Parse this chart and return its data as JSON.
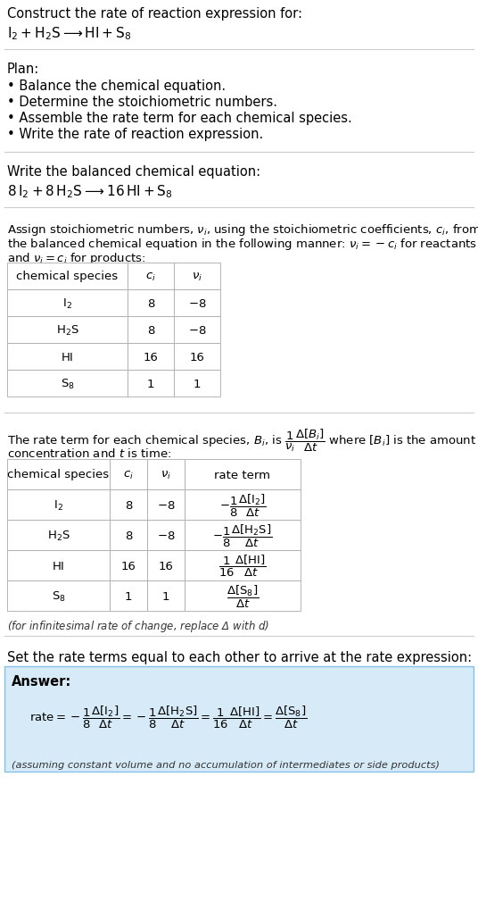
{
  "title_line1": "Construct the rate of reaction expression for:",
  "title_line2": "$\\mathrm{I_2 + H_2S \\longrightarrow HI + S_8}$",
  "plan_header": "Plan:",
  "plan_items": [
    "• Balance the chemical equation.",
    "• Determine the stoichiometric numbers.",
    "• Assemble the rate term for each chemical species.",
    "• Write the rate of reaction expression."
  ],
  "balanced_header": "Write the balanced chemical equation:",
  "balanced_eq": "$8\\,\\mathrm{I_2} + 8\\,\\mathrm{H_2S} \\longrightarrow 16\\,\\mathrm{HI} + \\mathrm{S_8}$",
  "stoich_intro1": "Assign stoichiometric numbers, $\\nu_i$, using the stoichiometric coefficients, $c_i$, from",
  "stoich_intro2": "the balanced chemical equation in the following manner: $\\nu_i = -c_i$ for reactants",
  "stoich_intro3": "and $\\nu_i = c_i$ for products:",
  "table1_headers": [
    "chemical species",
    "$c_i$",
    "$\\nu_i$"
  ],
  "table1_data": [
    [
      "$\\mathrm{I_2}$",
      "8",
      "$-8$"
    ],
    [
      "$\\mathrm{H_2S}$",
      "8",
      "$-8$"
    ],
    [
      "$\\mathrm{HI}$",
      "16",
      "16"
    ],
    [
      "$\\mathrm{S_8}$",
      "1",
      "1"
    ]
  ],
  "rate_intro1": "The rate term for each chemical species, $B_i$, is $\\dfrac{1}{\\nu_i}\\dfrac{\\Delta[B_i]}{\\Delta t}$ where $[B_i]$ is the amount",
  "rate_intro2": "concentration and $t$ is time:",
  "table2_headers": [
    "chemical species",
    "$c_i$",
    "$\\nu_i$",
    "rate term"
  ],
  "table2_data": [
    [
      "$\\mathrm{I_2}$",
      "8",
      "$-8$",
      "$-\\dfrac{1}{8}\\dfrac{\\Delta[\\mathrm{I_2}]}{\\Delta t}$"
    ],
    [
      "$\\mathrm{H_2S}$",
      "8",
      "$-8$",
      "$-\\dfrac{1}{8}\\dfrac{\\Delta[\\mathrm{H_2S}]}{\\Delta t}$"
    ],
    [
      "$\\mathrm{HI}$",
      "16",
      "16",
      "$\\dfrac{1}{16}\\dfrac{\\Delta[\\mathrm{HI}]}{\\Delta t}$"
    ],
    [
      "$\\mathrm{S_8}$",
      "1",
      "1",
      "$\\dfrac{\\Delta[\\mathrm{S_8}]}{\\Delta t}$"
    ]
  ],
  "infinitesimal_note": "(for infinitesimal rate of change, replace Δ with $d$)",
  "set_equal_text": "Set the rate terms equal to each other to arrive at the rate expression:",
  "answer_label": "Answer:",
  "answer_eq": "$\\mathrm{rate} = -\\dfrac{1}{8}\\dfrac{\\Delta[\\mathrm{I_2}]}{\\Delta t} = -\\dfrac{1}{8}\\dfrac{\\Delta[\\mathrm{H_2S}]}{\\Delta t} = \\dfrac{1}{16}\\dfrac{\\Delta[\\mathrm{HI}]}{\\Delta t} = \\dfrac{\\Delta[\\mathrm{S_8}]}{\\Delta t}$",
  "assuming_note": "(assuming constant volume and no accumulation of intermediates or side products)",
  "answer_bg_color": "#d6eaf8",
  "answer_border_color": "#85c1e9",
  "bg_color": "#ffffff",
  "text_color": "#000000",
  "table_border_color": "#aaaaaa",
  "sep_color": "#cccccc",
  "fig_w": 5.36,
  "fig_h": 10.2,
  "dpi": 100
}
